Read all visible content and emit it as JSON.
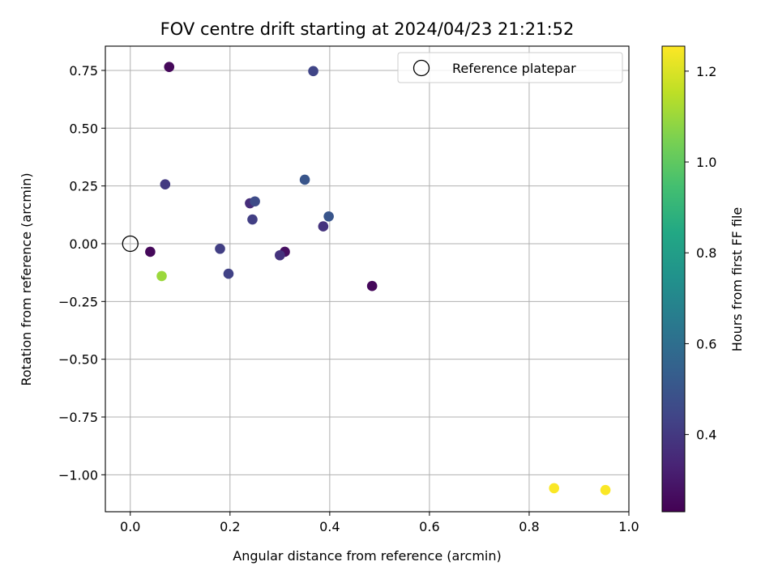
{
  "chart_data": {
    "type": "scatter",
    "title": "FOV centre drift starting at 2024/04/23 21:21:52",
    "xlabel": "Angular distance from reference (arcmin)",
    "ylabel": "Rotation from reference (arcmin)",
    "xlim": [
      -0.05,
      1.0
    ],
    "ylim": [
      -1.16,
      0.855
    ],
    "xticks": [
      0.0,
      0.2,
      0.4,
      0.6,
      0.8,
      1.0
    ],
    "xtick_labels": [
      "0.0",
      "0.2",
      "0.4",
      "0.6",
      "0.8",
      "1.0"
    ],
    "yticks": [
      0.75,
      0.5,
      0.25,
      0.0,
      -0.25,
      -0.5,
      -0.75,
      -1.0
    ],
    "ytick_labels": [
      "0.75",
      "0.50",
      "0.25",
      "0.00",
      "−0.25",
      "−0.50",
      "−0.75",
      "−1.00"
    ],
    "grid": true,
    "legend": {
      "placement": "top-right",
      "entries": [
        {
          "label": "Reference platepar",
          "marker": "open-circle"
        }
      ]
    },
    "reference_point": {
      "x": 0.0,
      "y": 0.0
    },
    "colorbar": {
      "label": "Hours from first FF file",
      "colormap": "viridis",
      "range": [
        0.23,
        1.255
      ],
      "ticks": [
        0.4,
        0.6,
        0.8,
        1.0,
        1.2
      ],
      "tick_labels": [
        "0.4",
        "0.6",
        "0.8",
        "1.0",
        "1.2"
      ]
    },
    "points": [
      {
        "x": 0.078,
        "y": 0.765,
        "c": 0.25
      },
      {
        "x": 0.367,
        "y": 0.747,
        "c": 0.44
      },
      {
        "x": 0.07,
        "y": 0.257,
        "c": 0.4
      },
      {
        "x": 0.35,
        "y": 0.277,
        "c": 0.5
      },
      {
        "x": 0.24,
        "y": 0.175,
        "c": 0.36
      },
      {
        "x": 0.25,
        "y": 0.183,
        "c": 0.46
      },
      {
        "x": 0.245,
        "y": 0.105,
        "c": 0.42
      },
      {
        "x": 0.398,
        "y": 0.118,
        "c": 0.5
      },
      {
        "x": 0.387,
        "y": 0.075,
        "c": 0.38
      },
      {
        "x": 0.04,
        "y": -0.035,
        "c": 0.25
      },
      {
        "x": 0.18,
        "y": -0.022,
        "c": 0.42
      },
      {
        "x": 0.31,
        "y": -0.035,
        "c": 0.27
      },
      {
        "x": 0.3,
        "y": -0.05,
        "c": 0.38
      },
      {
        "x": 0.197,
        "y": -0.13,
        "c": 0.43
      },
      {
        "x": 0.063,
        "y": -0.14,
        "c": 1.1
      },
      {
        "x": 0.485,
        "y": -0.183,
        "c": 0.25
      },
      {
        "x": 0.85,
        "y": -1.058,
        "c": 1.25
      },
      {
        "x": 0.953,
        "y": -1.066,
        "c": 1.25
      }
    ]
  }
}
